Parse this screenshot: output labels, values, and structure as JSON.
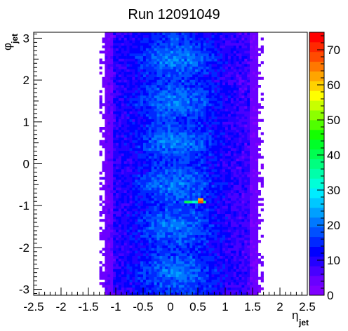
{
  "chart_data": {
    "type": "heatmap",
    "title": "Run 12091049",
    "xlabel": {
      "symbol": "η",
      "sub": "jet"
    },
    "ylabel": {
      "symbol": "φ",
      "sub": "jet"
    },
    "xlim": [
      -2.5,
      2.5
    ],
    "ylim": [
      -3.1416,
      3.1416
    ],
    "x_ticks": [
      -2.5,
      -2,
      -1.5,
      -1,
      -0.5,
      0,
      0.5,
      1,
      1.5,
      2,
      2.5
    ],
    "x_tick_labels": [
      "-2.5",
      "-2",
      "-1.5",
      "-1",
      "-0.5",
      "0",
      "0.5",
      "1",
      "1.5",
      "2",
      "2.5"
    ],
    "y_ticks": [
      -3,
      -2,
      -1,
      0,
      1,
      2,
      3
    ],
    "y_tick_labels": [
      "-3",
      "-2",
      "-1",
      "0",
      "1",
      "2",
      "3"
    ],
    "z_range": [
      0,
      75
    ],
    "z_ticks": [
      0,
      10,
      20,
      30,
      40,
      50,
      60,
      70
    ],
    "z_tick_labels": [
      "0",
      "10",
      "20",
      "30",
      "40",
      "50",
      "60",
      "70"
    ],
    "palette": [
      "#7f00ff",
      "#6a00ff",
      "#4800ff",
      "#2400ff",
      "#0000ff",
      "#0028ff",
      "#0050ff",
      "#0078ff",
      "#00a0ff",
      "#00c8ff",
      "#00ecff",
      "#00ffd8",
      "#00ffaa",
      "#00ff7f",
      "#00ff50",
      "#00ff28",
      "#14ff00",
      "#50ff00",
      "#8cff00",
      "#c8ff00",
      "#ffff00",
      "#ffd200",
      "#ffa500",
      "#ff7800",
      "#ff4b00",
      "#ff2800",
      "#ff0000"
    ],
    "binning": {
      "nx": 100,
      "ny": 100
    },
    "distribution": {
      "eta_populated_range": [
        -1.2,
        1.6
      ],
      "typical_counts": [
        2,
        20
      ],
      "band_peaks_phi": [
        -2.6,
        -1.5,
        -0.5,
        0.5,
        1.5,
        2.5
      ],
      "hotspot": {
        "eta": 0.55,
        "phi": -0.9,
        "count": 72
      }
    }
  }
}
